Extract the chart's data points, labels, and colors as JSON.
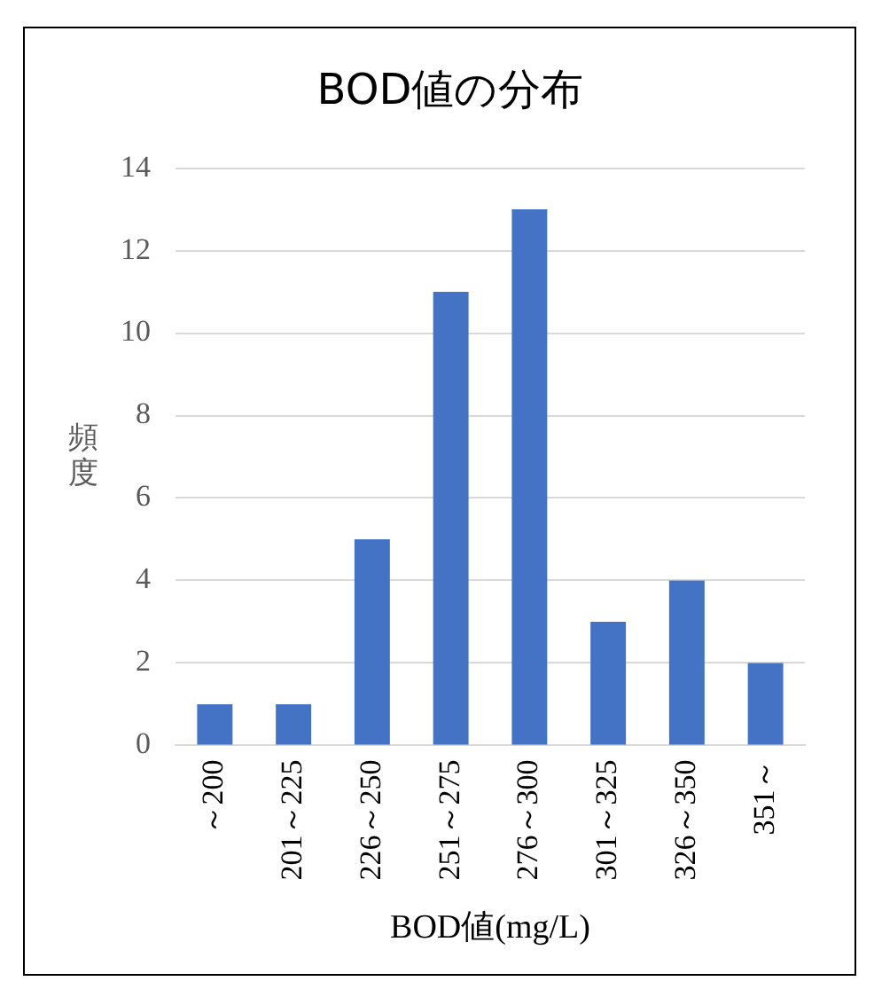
{
  "chart_data": {
    "type": "bar",
    "title": "BOD値の分布",
    "xlabel": "BOD値(mg/L)",
    "ylabel": "頻度",
    "categories": [
      "～200",
      "201～225",
      "226～250",
      "251～275",
      "276～300",
      "301～325",
      "326～350",
      "351～"
    ],
    "values": [
      1,
      1,
      5,
      11,
      13,
      3,
      4,
      2
    ],
    "color": "#4472c4",
    "ylim": [
      0,
      14
    ],
    "yticks": [
      0,
      2,
      4,
      6,
      8,
      10,
      12,
      14
    ],
    "grid": "y",
    "legend": false
  }
}
